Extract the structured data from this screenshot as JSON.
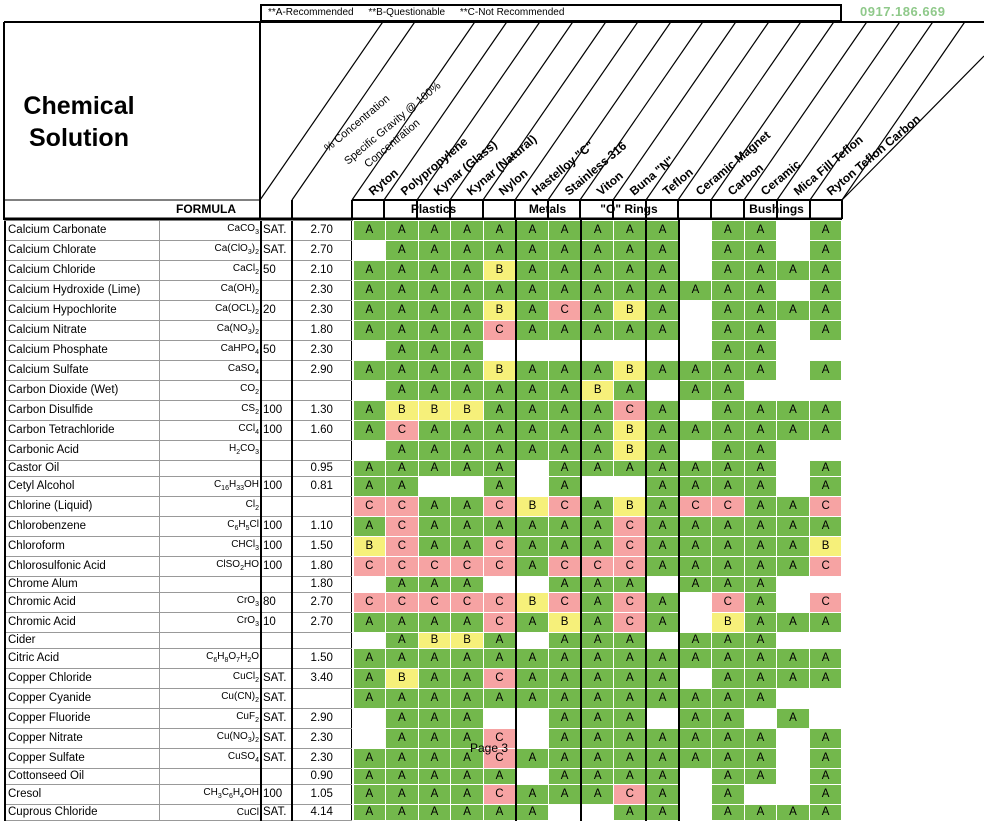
{
  "legend": {
    "a": "**A-Recommended",
    "b": "**B-Questionable",
    "c": "**C-Not Recommended"
  },
  "phone": "0917.186.669",
  "title_line1": "Chemical",
  "title_line2": "Solution",
  "formula_header": "FORMULA",
  "diag_headers": {
    "concentration": "% Concentration",
    "sg_line1": "Specific Gravity @ 100%",
    "sg_line2": "Concentration",
    "materials": [
      "Ryton",
      "Polypropylene",
      "Kynar (Glass)",
      "Kynar (Natural)",
      "Nylon",
      "Hastelloy \"C\"",
      "Stainless 316",
      "Viton",
      "Buna \"N\"",
      "Teflon",
      "Ceramic Magnet",
      "Carbon",
      "Ceramic",
      "Mica Fill Teflon",
      "Ryton Teflon Carbon"
    ]
  },
  "groups": {
    "plastics": "Plastics",
    "metals": "Metals",
    "orings": "\"O\" Rings",
    "bushings": "Bushings"
  },
  "rows": [
    {
      "name": "Calcium Carbonate",
      "f": [
        "CaCO",
        "3",
        ""
      ],
      "conc": "SAT.",
      "sg": "2.70",
      "r": "AAAAAAAAAA AA A"
    },
    {
      "name": "Calcium Chlorate",
      "f": [
        "Ca(ClO",
        "3",
        ")",
        "2",
        ""
      ],
      "conc": "SAT.",
      "sg": "2.70",
      "r": " AAAAAAAAA AA A"
    },
    {
      "name": "Calcium Chloride",
      "f": [
        "CaCl",
        "2",
        ""
      ],
      "conc": "50",
      "sg": "2.10",
      "r": "AAAABAAAAA AAAA"
    },
    {
      "name": "Calcium Hydroxide (Lime)",
      "f": [
        "Ca(OH)",
        "2",
        ""
      ],
      "conc": "",
      "sg": "2.30",
      "r": "AAAAAAAAAAAAA A"
    },
    {
      "name": "Calcium Hypochlorite",
      "f": [
        "Ca(OCL)",
        "2",
        ""
      ],
      "conc": "20",
      "sg": "2.30",
      "r": "AAAABACABA AAAA"
    },
    {
      "name": "Calcium Nitrate",
      "f": [
        "Ca(NO",
        "3",
        ")",
        "2",
        ""
      ],
      "conc": "",
      "sg": "1.80",
      "r": "AAAACAAAAA AA A"
    },
    {
      "name": "Calcium Phosphate",
      "f": [
        "CaHPO",
        "4",
        ""
      ],
      "conc": "50",
      "sg": "2.30",
      "r": " AAA       AA  "
    },
    {
      "name": "Calcium Sulfate",
      "f": [
        "CaSO",
        "4",
        ""
      ],
      "conc": "",
      "sg": "2.90",
      "r": "AAAABAAABAAAA A"
    },
    {
      "name": "Carbon Dioxide (Wet)",
      "f": [
        "CO",
        "2",
        ""
      ],
      "conc": "",
      "sg": "",
      "r": " AAAAAABA AA  "
    },
    {
      "name": "Carbon Disulfide",
      "f": [
        "CS",
        "2",
        ""
      ],
      "conc": "100",
      "sg": "1.30",
      "r": "ABBBAAAACA AAAA"
    },
    {
      "name": "Carbon Tetrachloride",
      "f": [
        "CCl",
        "4",
        ""
      ],
      "conc": "100",
      "sg": "1.60",
      "r": "ACAAAAAABAAAAAA"
    },
    {
      "name": "Carbonic Acid",
      "f": [
        "H",
        "2",
        "CO",
        "3",
        ""
      ],
      "conc": "",
      "sg": "",
      "r": " AAAAAAABA AA  "
    },
    {
      "name": "Castor Oil",
      "f": [
        ""
      ],
      "conc": "",
      "sg": "0.95",
      "r": "AAAAA AAAAAAA A"
    },
    {
      "name": "Cetyl Alcohol",
      "f": [
        "C",
        "16",
        "H",
        "33",
        "OH"
      ],
      "conc": "100",
      "sg": "0.81",
      "r": "AA  A A  AAAA A"
    },
    {
      "name": "Chlorine (Liquid)",
      "f": [
        "Cl",
        "2",
        ""
      ],
      "conc": "",
      "sg": "",
      "r": "CCAACBCABACCAAC"
    },
    {
      "name": "Chlorobenzene",
      "f": [
        "C",
        "6",
        "H",
        "5",
        "Cl"
      ],
      "conc": "100",
      "sg": "1.10",
      "r": "ACAAAAAACAAAAAA"
    },
    {
      "name": "Chloroform",
      "f": [
        "CHCl",
        "3",
        ""
      ],
      "conc": "100",
      "sg": "1.50",
      "r": "BCAACAAACAAAAAB"
    },
    {
      "name": "Chlorosulfonic Acid",
      "f": [
        "ClSO",
        "2",
        "HO"
      ],
      "conc": "100",
      "sg": "1.80",
      "r": "CCCCCACCCAAAAAC"
    },
    {
      "name": "Chrome Alum",
      "f": [
        ""
      ],
      "conc": "",
      "sg": "1.80",
      "r": " AAA  AAA AAA "
    },
    {
      "name": "Chromic Acid",
      "f": [
        "CrO",
        "3",
        ""
      ],
      "conc": "80",
      "sg": "2.70",
      "r": "CCCCCBCACA CA C"
    },
    {
      "name": "Chromic Acid",
      "f": [
        "CrO",
        "3",
        ""
      ],
      "conc": "10",
      "sg": "2.70",
      "r": "AAAACABACA BAAA"
    },
    {
      "name": "Cider",
      "f": [
        ""
      ],
      "conc": "",
      "sg": "",
      "r": " ABBA AAA AAA  "
    },
    {
      "name": "Citric Acid",
      "f": [
        "C",
        "6",
        "H",
        "8",
        "O",
        "7",
        "H",
        "2",
        "O"
      ],
      "conc": "",
      "sg": "1.50",
      "r": "AAAAAAAAAAAAAAA"
    },
    {
      "name": "Copper Chloride",
      "f": [
        "CuCl",
        "2",
        ""
      ],
      "conc": "SAT.",
      "sg": "3.40",
      "r": "ABAACAAAAA AAAA"
    },
    {
      "name": "Copper Cyanide",
      "f": [
        "Cu(CN)",
        "2",
        ""
      ],
      "conc": "SAT.",
      "sg": "",
      "r": "AAAAAAAAAAAAA  "
    },
    {
      "name": "Copper Fluoride",
      "f": [
        "CuF",
        "2",
        ""
      ],
      "conc": "SAT.",
      "sg": "2.90",
      "r": " AAA  AAA AA A"
    },
    {
      "name": "Copper Nitrate",
      "f": [
        "Cu(NO",
        "3",
        ")",
        "2",
        ""
      ],
      "conc": "SAT.",
      "sg": "2.30",
      "r": " AAAC AAAAAAA A"
    },
    {
      "name": "Copper Sulfate",
      "f": [
        "CuSO",
        "4",
        ""
      ],
      "conc": "SAT.",
      "sg": "2.30",
      "r": "AAAACAAAAAAAA A"
    },
    {
      "name": "Cottonseed Oil",
      "f": [
        ""
      ],
      "conc": "",
      "sg": "0.90",
      "r": "AAAAA AAAA AA A"
    },
    {
      "name": "Cresol",
      "f": [
        "CH",
        "3",
        "C",
        "6",
        "H",
        "4",
        "OH"
      ],
      "conc": "100",
      "sg": "1.05",
      "r": "AAAACAAACA A  A"
    },
    {
      "name": "Cuprous Chloride",
      "f": [
        "CuCl"
      ],
      "conc": "SAT.",
      "sg": "4.14",
      "r": "AAAAAA  AA AAAA"
    }
  ],
  "footer": "Page 3",
  "colors": {
    "A": "#73b84c",
    "B": "#f6f07a",
    "C": "#f6a3a3",
    "phone": "#8fc98a"
  }
}
